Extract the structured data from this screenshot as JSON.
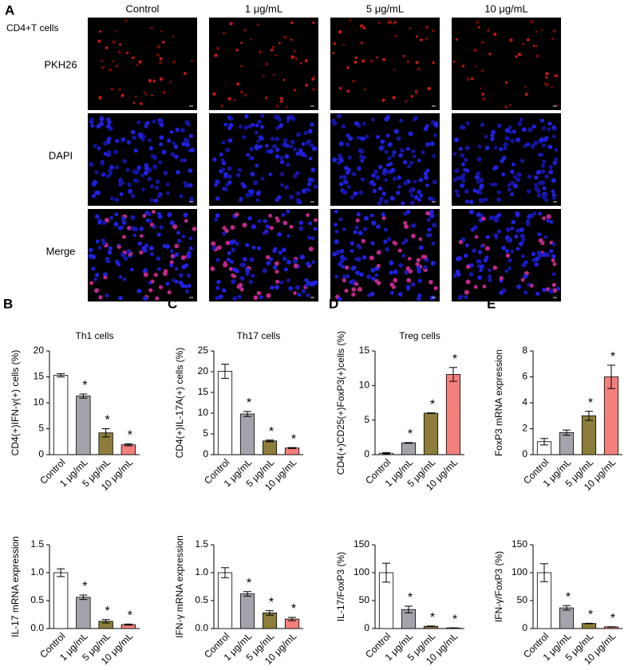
{
  "figure": {
    "panel": "A",
    "columns": [
      "Control",
      "1 μg/mL",
      "5 μg/mL",
      "10 μg/mL"
    ],
    "cell_type": "CD4+T cells",
    "rows": [
      "PKH26",
      "DAPI",
      "Merge"
    ]
  },
  "chart_data": [
    {
      "type": "bar",
      "panel": "B",
      "title": "Th1 cells",
      "y_label": "CD4(+)IFN-γ(+) cells (%)",
      "categories": [
        "Control",
        "1 μg/mL",
        "5 μg/mL",
        "10 μg/mL"
      ],
      "values": [
        15.3,
        11.3,
        4.2,
        1.9
      ],
      "errors": [
        0.3,
        0.4,
        0.8,
        0.2
      ],
      "colors": [
        "#ffffff",
        "#a3a3ab",
        "#8c7e3a",
        "#f4807c"
      ],
      "significance": [
        null,
        "*",
        "*",
        "*"
      ],
      "ylim": [
        0,
        20
      ],
      "yticks": [
        0,
        5,
        10,
        15,
        20
      ]
    },
    {
      "type": "bar",
      "panel": "C",
      "title": "Th17 cells",
      "y_label": "CD4(+)IL-17A(+) cells (%)",
      "categories": [
        "Control",
        "1 μg/mL",
        "5 μg/mL",
        "10 μg/mL"
      ],
      "values": [
        20.1,
        9.8,
        3.3,
        1.6
      ],
      "errors": [
        1.7,
        0.6,
        0.2,
        0.1
      ],
      "colors": [
        "#ffffff",
        "#a3a3ab",
        "#8c7e3a",
        "#f4807c"
      ],
      "significance": [
        null,
        "*",
        "*",
        "*"
      ],
      "ylim": [
        0,
        25
      ],
      "yticks": [
        0,
        5,
        10,
        15,
        20,
        25
      ]
    },
    {
      "type": "bar",
      "panel": "D",
      "title": "Treg cells",
      "y_label": "CD4(+)CD25(+)FoxP3(+)cells (%)",
      "categories": [
        "Control",
        "1 μg/mL",
        "5 μg/mL",
        "10 μg/mL"
      ],
      "values": [
        0.2,
        1.7,
        6.0,
        11.6
      ],
      "errors": [
        0.1,
        0.05,
        0.05,
        1.0
      ],
      "colors": [
        "#ffffff",
        "#a3a3ab",
        "#8c7e3a",
        "#f4807c"
      ],
      "significance": [
        null,
        "*",
        "*",
        "*"
      ],
      "ylim": [
        0,
        15
      ],
      "yticks": [
        0,
        5,
        10,
        15
      ]
    },
    {
      "type": "bar",
      "panel": "E",
      "y_label": "FoxP3 mRNA expression",
      "categories": [
        "Control",
        "1 μg/mL",
        "5 μg/mL",
        "10 μg/mL"
      ],
      "values": [
        1.0,
        1.7,
        3.0,
        6.0
      ],
      "errors": [
        0.25,
        0.2,
        0.35,
        0.9
      ],
      "colors": [
        "#ffffff",
        "#a3a3ab",
        "#8c7e3a",
        "#f4807c"
      ],
      "significance": [
        null,
        null,
        "*",
        "*"
      ],
      "ylim": [
        0,
        8
      ],
      "yticks": [
        0,
        2,
        4,
        6,
        8
      ]
    },
    {
      "type": "bar",
      "y_label": "IL-17 mRNA expression",
      "categories": [
        "Control",
        "1 μg/mL",
        "5 μg/mL",
        "10 μg/mL"
      ],
      "values": [
        1.0,
        0.56,
        0.13,
        0.07
      ],
      "errors": [
        0.07,
        0.04,
        0.03,
        0.01
      ],
      "colors": [
        "#ffffff",
        "#a3a3ab",
        "#8c7e3a",
        "#f4807c"
      ],
      "significance": [
        null,
        "*",
        "*",
        "*"
      ],
      "ylim": [
        0,
        1.5
      ],
      "yticks": [
        {
          "value": 0,
          "label": "0.0"
        },
        0.5,
        {
          "value": 1,
          "label": "1.0"
        },
        1.5
      ]
    },
    {
      "type": "bar",
      "y_label": "IFN-γ mRNA expression",
      "categories": [
        "Control",
        "1 μg/mL",
        "5 μg/mL",
        "10 μg/mL"
      ],
      "values": [
        1.0,
        0.62,
        0.28,
        0.17
      ],
      "errors": [
        0.09,
        0.04,
        0.04,
        0.03
      ],
      "colors": [
        "#ffffff",
        "#a3a3ab",
        "#8c7e3a",
        "#f4807c"
      ],
      "significance": [
        null,
        "*",
        "*",
        "*"
      ],
      "ylim": [
        0,
        1.5
      ],
      "yticks": [
        {
          "value": 0,
          "label": "0.0"
        },
        0.5,
        {
          "value": 1,
          "label": "1.0"
        },
        1.5
      ]
    },
    {
      "type": "bar",
      "y_label": "IL-17/FoxP3 (%)",
      "categories": [
        "Control",
        "1 μg/mL",
        "5 μg/mL",
        "10 μg/mL"
      ],
      "values": [
        100,
        34,
        4,
        1
      ],
      "errors": [
        17,
        6,
        0.5,
        0.3
      ],
      "colors": [
        "#ffffff",
        "#a3a3ab",
        "#8c7e3a",
        "#f4807c"
      ],
      "significance": [
        null,
        "*",
        "*",
        "*"
      ],
      "ylim": [
        0,
        150
      ],
      "yticks": [
        0,
        50,
        100,
        150
      ]
    },
    {
      "type": "bar",
      "y_label": "IFN-γ/FoxP3 (%)",
      "categories": [
        "Control",
        "1 μg/mL",
        "5 μg/mL",
        "10 μg/mL"
      ],
      "values": [
        100,
        37,
        9,
        3
      ],
      "errors": [
        16,
        4,
        0.5,
        0.3
      ],
      "colors": [
        "#ffffff",
        "#a3a3ab",
        "#8c7e3a",
        "#f4807c"
      ],
      "significance": [
        null,
        "*",
        "*",
        "*"
      ],
      "ylim": [
        0,
        150
      ],
      "yticks": [
        0,
        50,
        100,
        150
      ]
    }
  ]
}
